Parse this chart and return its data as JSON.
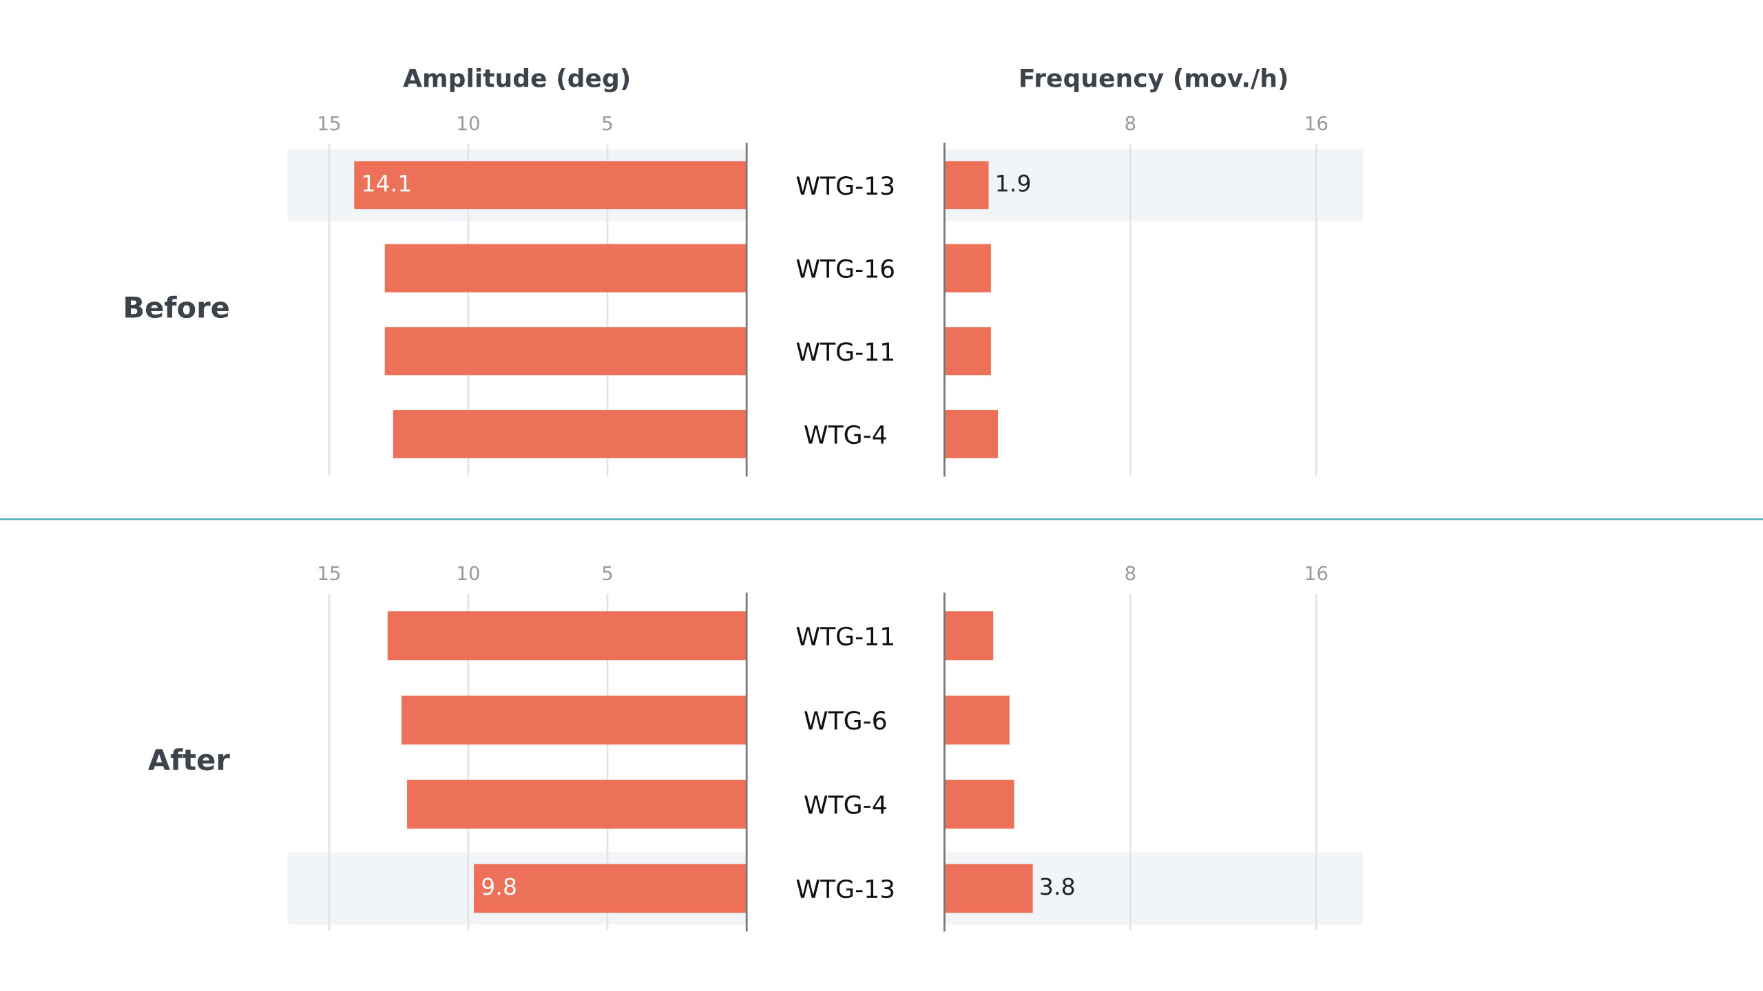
{
  "chart_data": [
    {
      "type": "bar",
      "orientation": "horizontal",
      "xlabel": "Amplitude (deg)",
      "ylabel": "Before",
      "categories": [
        "WTG-13",
        "WTG-16",
        "WTG-11",
        "WTG-4"
      ],
      "values": [
        14.1,
        13.0,
        13.0,
        12.7
      ],
      "value_labels": [
        "14.1",
        null,
        null,
        null
      ],
      "color": "#ec7158",
      "xlim": [
        16.5,
        0
      ],
      "xticks": [
        15,
        10,
        5
      ],
      "grid": "x",
      "bands": [
        {
          "axis": "y",
          "from": "WTG-13",
          "to": "WTG-13",
          "color": "#f2f5f8"
        }
      ]
    },
    {
      "type": "bar",
      "orientation": "horizontal",
      "xlabel": "Frequency (mov./h)",
      "categories": [
        "WTG-13",
        "WTG-16",
        "WTG-11",
        "WTG-4"
      ],
      "values": [
        1.9,
        2.0,
        2.0,
        2.3
      ],
      "value_labels": [
        "1.9",
        null,
        null,
        null
      ],
      "color": "#ec7158",
      "xlim": [
        0,
        18
      ],
      "xticks": [
        8,
        16
      ],
      "grid": "x",
      "tick_labels": "x",
      "bands": [
        {
          "axis": "y",
          "from": "WTG-13",
          "to": "WTG-13",
          "color": "#f2f5f8"
        }
      ]
    },
    {
      "type": "bar",
      "orientation": "horizontal",
      "ylabel": "After",
      "categories": [
        "WTG-11",
        "WTG-6",
        "WTG-4",
        "WTG-13"
      ],
      "values": [
        12.9,
        12.4,
        12.2,
        9.8
      ],
      "value_labels": [
        null,
        null,
        null,
        "9.8"
      ],
      "color": "#ec7158",
      "xlim": [
        16.5,
        0
      ],
      "xticks": [
        15,
        10,
        5
      ],
      "grid": "x",
      "bands": [
        {
          "axis": "y",
          "from": "WTG-13",
          "to": "WTG-13",
          "color": "#f2f5f8"
        }
      ]
    },
    {
      "type": "bar",
      "orientation": "horizontal",
      "categories": [
        "WTG-11",
        "WTG-6",
        "WTG-4",
        "WTG-13"
      ],
      "values": [
        2.1,
        2.8,
        3.0,
        3.8
      ],
      "value_labels": [
        null,
        null,
        null,
        "3.8"
      ],
      "color": "#ec7158",
      "xlim": [
        0,
        18
      ],
      "xticks": [
        8,
        16
      ],
      "grid": "x",
      "tick_labels": "x",
      "bands": [
        {
          "axis": "y",
          "from": "WTG-13",
          "to": "WTG-13",
          "color": "#f2f5f8"
        }
      ]
    }
  ]
}
